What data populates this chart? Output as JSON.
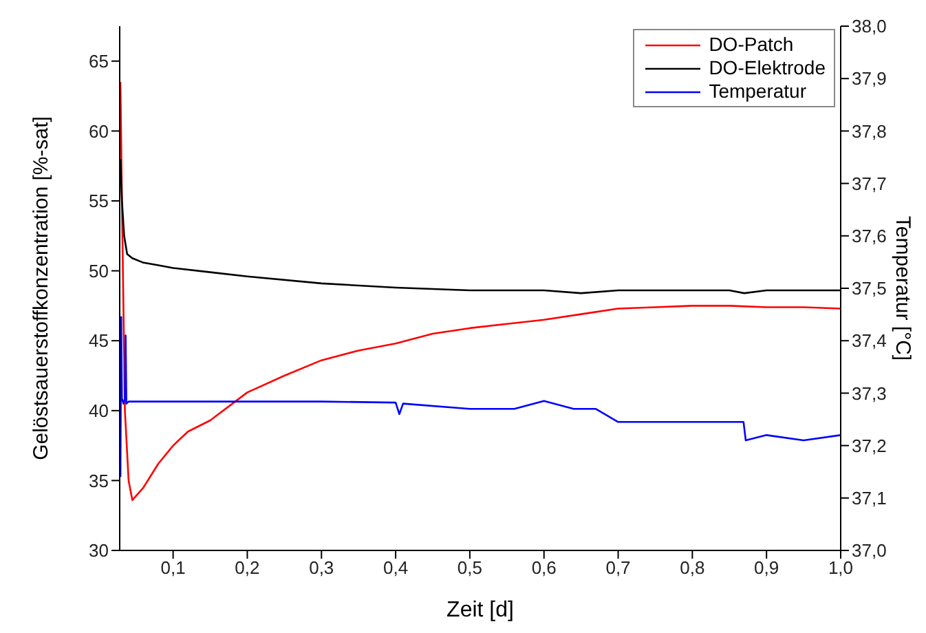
{
  "chart_data": {
    "type": "line",
    "xlabel": "Zeit [d]",
    "ylabel": "Gelöstsauerstoffkonzentration  [%-sat]",
    "y2label": "Temperatur [°C]",
    "xlim": [
      0.028,
      1.0
    ],
    "ylim": [
      30,
      67.5
    ],
    "y2lim": [
      37.0,
      38.0
    ],
    "xticks": [
      {
        "value": 0.1,
        "label": "0,1"
      },
      {
        "value": 0.2,
        "label": "0,2"
      },
      {
        "value": 0.3,
        "label": "0,3"
      },
      {
        "value": 0.4,
        "label": "0,4"
      },
      {
        "value": 0.5,
        "label": "0,5"
      },
      {
        "value": 0.6,
        "label": "0,6"
      },
      {
        "value": 0.7,
        "label": "0,7"
      },
      {
        "value": 0.8,
        "label": "0,8"
      },
      {
        "value": 0.9,
        "label": "0,9"
      },
      {
        "value": 1.0,
        "label": "1,0"
      }
    ],
    "yticks": [
      30,
      35,
      40,
      45,
      50,
      55,
      60,
      65
    ],
    "y2ticks": [
      {
        "value": 37.0,
        "label": "37,0"
      },
      {
        "value": 37.1,
        "label": "37,1"
      },
      {
        "value": 37.2,
        "label": "37,2"
      },
      {
        "value": 37.3,
        "label": "37,3"
      },
      {
        "value": 37.4,
        "label": "37,4"
      },
      {
        "value": 37.5,
        "label": "37,5"
      },
      {
        "value": 37.6,
        "label": "37,6"
      },
      {
        "value": 37.7,
        "label": "37,7"
      },
      {
        "value": 37.8,
        "label": "37,8"
      },
      {
        "value": 37.9,
        "label": "37,9"
      },
      {
        "value": 38.0,
        "label": "38,0"
      }
    ],
    "grid": false,
    "legend": "top right",
    "marker": "none",
    "line_style": "solid",
    "series": [
      {
        "name": "DO-Patch",
        "color": "#ff0000",
        "x": [
          0.029,
          0.031,
          0.035,
          0.04,
          0.045,
          0.06,
          0.08,
          0.1,
          0.12,
          0.15,
          0.18,
          0.2,
          0.25,
          0.3,
          0.35,
          0.4,
          0.45,
          0.5,
          0.55,
          0.6,
          0.65,
          0.7,
          0.75,
          0.8,
          0.85,
          0.9,
          0.95,
          1.0
        ],
        "values": [
          63.5,
          55,
          40,
          35,
          33.6,
          34.5,
          36.2,
          37.5,
          38.5,
          39.3,
          40.5,
          41.3,
          42.5,
          43.6,
          44.3,
          44.8,
          45.5,
          45.9,
          46.2,
          46.5,
          46.9,
          47.3,
          47.4,
          47.5,
          47.5,
          47.4,
          47.4,
          47.3
        ]
      },
      {
        "name": "DO-Elektrode",
        "color": "#000000",
        "x": [
          0.029,
          0.031,
          0.034,
          0.038,
          0.045,
          0.059,
          0.08,
          0.1,
          0.15,
          0.2,
          0.3,
          0.4,
          0.5,
          0.6,
          0.65,
          0.7,
          0.8,
          0.85,
          0.87,
          0.9,
          1.0
        ],
        "values": [
          58,
          55,
          52.5,
          51.2,
          50.9,
          50.6,
          50.4,
          50.2,
          49.9,
          49.6,
          49.1,
          48.8,
          48.6,
          48.6,
          48.4,
          48.6,
          48.6,
          48.6,
          48.4,
          48.6,
          48.6
        ]
      },
      {
        "name": "Temperatur",
        "color": "#0000ff",
        "axis": "y2",
        "x": [
          0.029,
          0.03,
          0.031,
          0.033,
          0.035,
          0.036,
          0.037,
          0.04,
          0.1,
          0.2,
          0.3,
          0.4,
          0.405,
          0.41,
          0.5,
          0.56,
          0.6,
          0.64,
          0.67,
          0.7,
          0.8,
          0.86,
          0.869,
          0.872,
          0.9,
          0.95,
          1.0
        ],
        "values": [
          37.14,
          37.445,
          37.29,
          37.28,
          37.29,
          37.41,
          37.28,
          37.284,
          37.284,
          37.284,
          37.284,
          37.282,
          37.26,
          37.28,
          37.27,
          37.27,
          37.285,
          37.27,
          37.27,
          37.245,
          37.245,
          37.245,
          37.245,
          37.21,
          37.22,
          37.21,
          37.22
        ]
      }
    ]
  }
}
